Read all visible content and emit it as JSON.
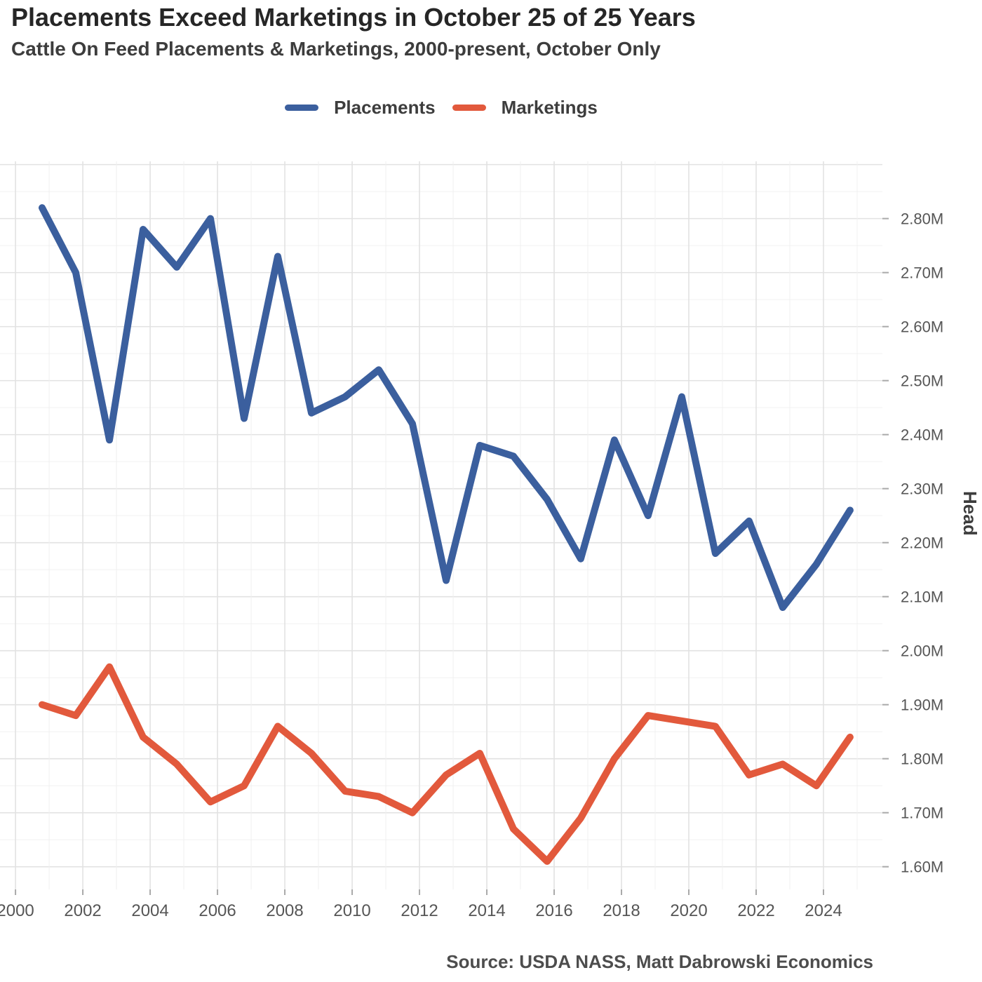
{
  "header": {
    "title": "Placements Exceed Marketings in October 25 of 25 Years",
    "subtitle": "Cattle On Feed Placements & Marketings, 2000-present, October Only"
  },
  "legend": [
    {
      "label": "Placements",
      "color": "#3b5f9e"
    },
    {
      "label": "Marketings",
      "color": "#e2593c"
    }
  ],
  "source": "Source: USDA NASS, Matt Dabrowski Economics",
  "chart_data": {
    "type": "line",
    "title": "Placements Exceed Marketings in October 25 of 25 Years",
    "subtitle": "Cattle On Feed Placements & Marketings, 2000-present, October Only",
    "xlabel": "",
    "ylabel": "Head",
    "units": "million head",
    "x": [
      2000,
      2001,
      2002,
      2003,
      2004,
      2005,
      2006,
      2007,
      2008,
      2009,
      2010,
      2011,
      2012,
      2013,
      2014,
      2015,
      2016,
      2017,
      2018,
      2019,
      2020,
      2021,
      2022,
      2023,
      2024
    ],
    "series": [
      {
        "name": "Placements",
        "color": "#3b5f9e",
        "values": [
          2.82,
          2.7,
          2.39,
          2.78,
          2.71,
          2.8,
          2.43,
          2.73,
          2.44,
          2.47,
          2.52,
          2.42,
          2.13,
          2.38,
          2.36,
          2.28,
          2.17,
          2.39,
          2.25,
          2.47,
          2.18,
          2.24,
          2.08,
          2.16,
          2.26
        ]
      },
      {
        "name": "Marketings",
        "color": "#e2593c",
        "values": [
          1.9,
          1.88,
          1.97,
          1.84,
          1.79,
          1.72,
          1.75,
          1.86,
          1.81,
          1.74,
          1.73,
          1.7,
          1.77,
          1.81,
          1.67,
          1.61,
          1.69,
          1.8,
          1.88,
          1.87,
          1.86,
          1.77,
          1.79,
          1.75,
          1.84
        ]
      }
    ],
    "x_tick_labels": [
      "2000",
      "2002",
      "2004",
      "2006",
      "2008",
      "2010",
      "2012",
      "2014",
      "2016",
      "2018",
      "2020",
      "2022",
      "2024"
    ],
    "y_tick_labels": [
      "1.60M",
      "1.70M",
      "1.80M",
      "1.90M",
      "2.00M",
      "2.10M",
      "2.20M",
      "2.30M",
      "2.40M",
      "2.50M",
      "2.60M",
      "2.70M",
      "2.80M"
    ],
    "layout": {
      "xlim": [
        1999.54,
        2025.75
      ],
      "ylim": [
        1.558,
        2.906
      ],
      "point_offset_years": 0.79,
      "x_minor_step_years": 1,
      "y_minor_step": 0.05,
      "grid": true,
      "legend_position": "top-center",
      "y_axis_side": "right"
    }
  }
}
